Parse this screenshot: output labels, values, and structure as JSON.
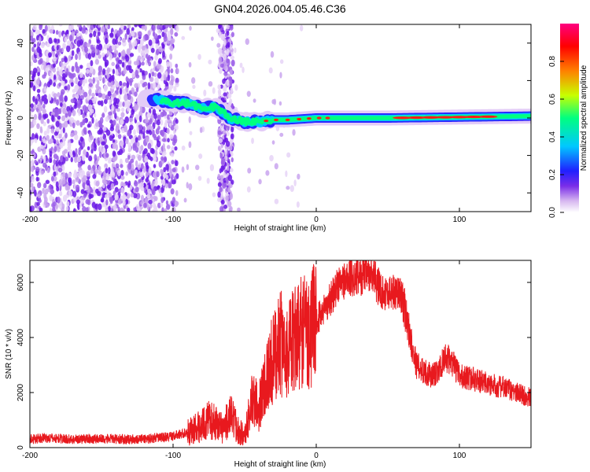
{
  "figure_title": "GN04.2026.004.05.46.C36",
  "chart_data": [
    {
      "type": "heatmap",
      "xlabel": "Height of straight line (km)",
      "ylabel": "Frequency (Hz)",
      "xlim": [
        -200,
        150
      ],
      "ylim": [
        -50,
        50
      ],
      "xticks": [
        -200,
        -100,
        0,
        100
      ],
      "yticks": [
        -40,
        -20,
        0,
        20,
        40
      ],
      "grid": false,
      "colorbar": {
        "label": "Normalized spectral amplitude",
        "range": [
          0,
          1
        ],
        "ticks": [
          0.0,
          0.2,
          0.4,
          0.6,
          0.8
        ],
        "tick_labels": [
          "0.0",
          "0.2",
          "0.4",
          "0.6",
          "0.8"
        ],
        "colormap_stops": [
          "#ffffff",
          "#d7b8f0",
          "#7a2ee8",
          "#2020ff",
          "#00c8ff",
          "#00ff80",
          "#c8ff00",
          "#ff8000",
          "#ff0000",
          "#ff0080"
        ]
      },
      "ridge": [
        {
          "x": -110,
          "y": 10
        },
        {
          "x": -100,
          "y": 8
        },
        {
          "x": -90,
          "y": 8
        },
        {
          "x": -80,
          "y": 5
        },
        {
          "x": -70,
          "y": 6
        },
        {
          "x": -60,
          "y": 0
        },
        {
          "x": -50,
          "y": -2
        },
        {
          "x": -40,
          "y": -2
        },
        {
          "x": -30,
          "y": -1
        },
        {
          "x": -20,
          "y": -1
        },
        {
          "x": -10,
          "y": -0.5
        },
        {
          "x": 0,
          "y": 0
        },
        {
          "x": 50,
          "y": 0
        },
        {
          "x": 100,
          "y": 0.5
        },
        {
          "x": 150,
          "y": 1
        }
      ]
    },
    {
      "type": "line",
      "xlabel": "Height of straight line (km)",
      "ylabel": "SNR (10 * v/v)",
      "xlim": [
        -200,
        150
      ],
      "ylim": [
        0,
        6800
      ],
      "xticks": [
        -200,
        -100,
        0,
        100
      ],
      "yticks": [
        0,
        2000,
        4000,
        6000
      ],
      "grid": false,
      "line_color": "#e8191e",
      "series": [
        {
          "x": [
            -200,
            -190,
            -180,
            -170,
            -160,
            -150,
            -140,
            -130,
            -120,
            -110,
            -100,
            -90,
            -80,
            -75,
            -70,
            -65,
            -60,
            -55,
            -50,
            -45,
            -40,
            -35,
            -30,
            -25,
            -20,
            -15,
            -10,
            -5,
            0,
            5,
            10,
            15,
            20,
            25,
            30,
            35,
            40,
            45,
            50,
            55,
            60,
            65,
            70,
            75,
            80,
            85,
            90,
            95,
            100,
            110,
            120,
            130,
            140,
            150
          ],
          "values": [
            300,
            350,
            330,
            300,
            320,
            320,
            310,
            300,
            320,
            360,
            420,
            550,
            800,
            1000,
            900,
            700,
            1200,
            700,
            400,
            1700,
            1500,
            2600,
            3200,
            3800,
            3500,
            3900,
            4300,
            4200,
            4600,
            5000,
            5400,
            5900,
            6100,
            6200,
            6250,
            6300,
            6200,
            5700,
            5600,
            5700,
            5500,
            4200,
            3000,
            2800,
            2600,
            2700,
            3300,
            3100,
            2600,
            2500,
            2300,
            2200,
            2000,
            1800
          ]
        }
      ]
    }
  ]
}
